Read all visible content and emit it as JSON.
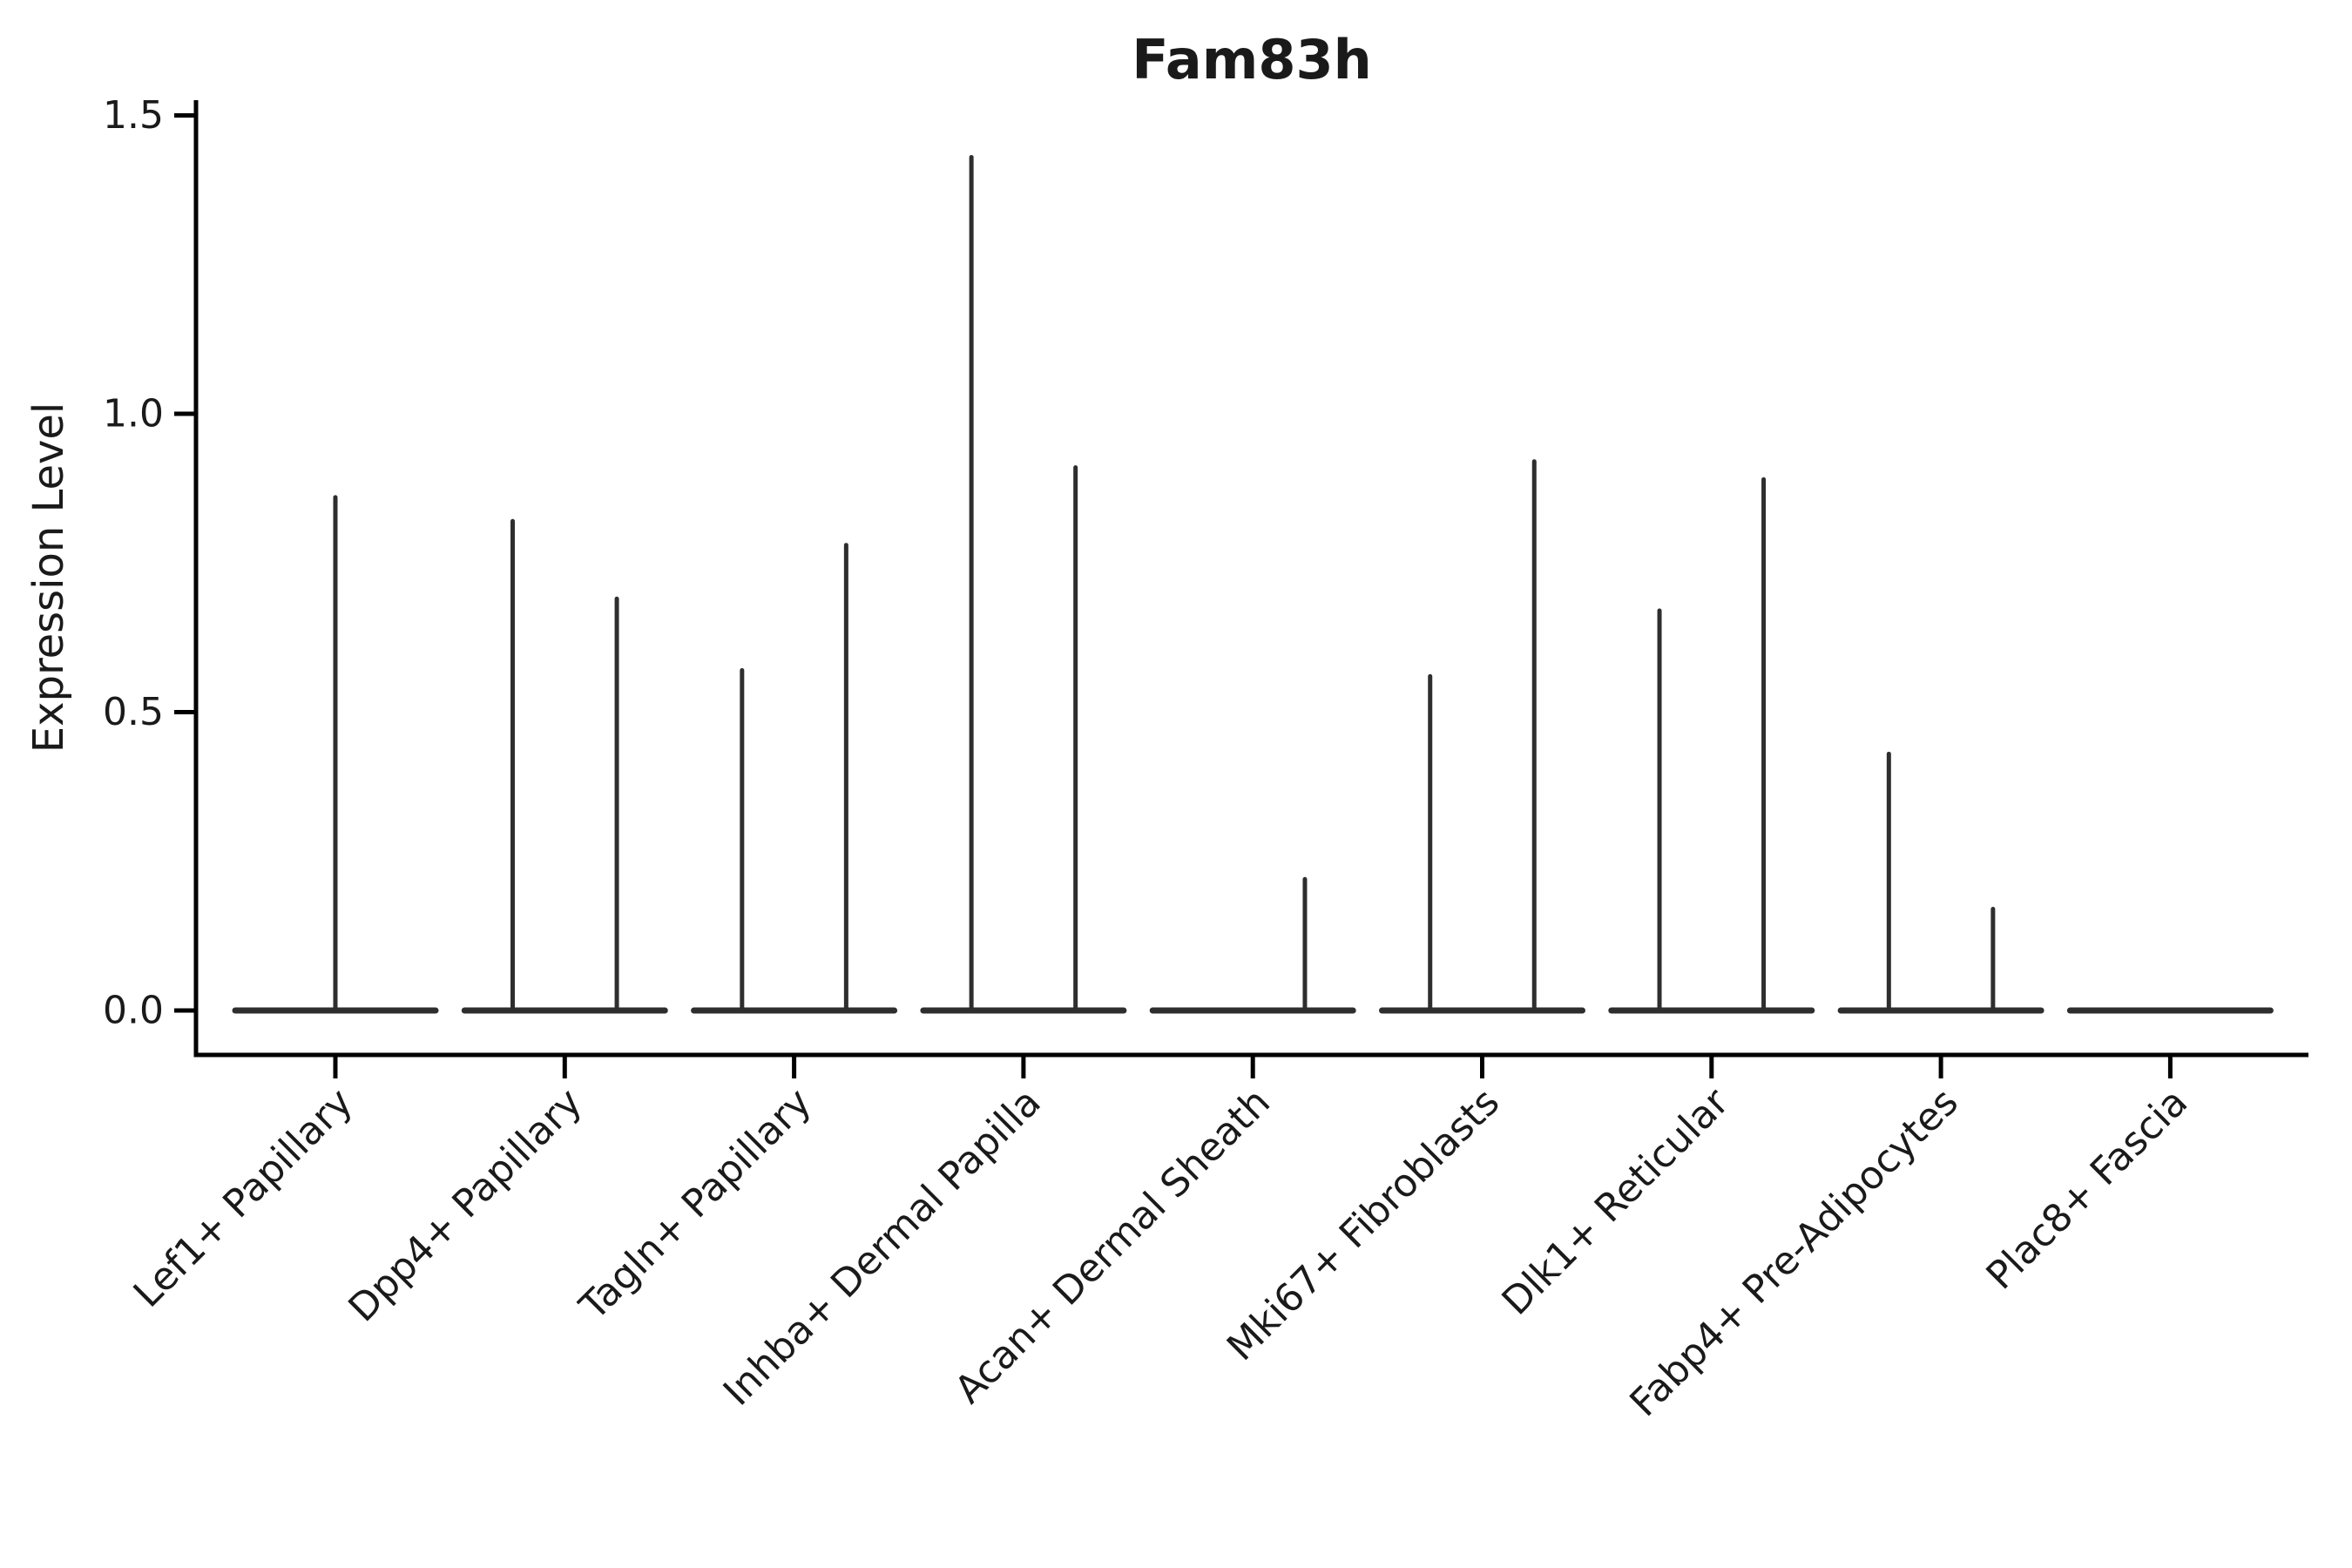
{
  "figure": {
    "title": "Fam83h",
    "ylabel": "Expression Level",
    "background": "#ffffff",
    "ink_color": "#1a1a1a",
    "violin_color": "#2e2e2e",
    "spine_color": "#000000"
  },
  "chart_data": {
    "type": "violin",
    "title": "Fam83h",
    "xlabel": "",
    "ylabel": "Expression Level",
    "ylim": [
      -0.07,
      1.53
    ],
    "yticks": [
      0.0,
      0.5,
      1.0,
      1.5
    ],
    "ytick_labels": [
      "0.0",
      "0.5",
      "1.0",
      "1.5"
    ],
    "grid": false,
    "legend": false,
    "categories": [
      "Lef1+ Papillary",
      "Dpp4+ Papillary",
      "Tagln+ Papillary",
      "Inhba+ Dermal Papilla",
      "Acan+ Dermal Sheath",
      "Mki67+ Fibroblasts",
      "Dlk1+ Reticular",
      "Fabp4+ Pre-Adipocytes",
      "Plac8+ Fascia"
    ],
    "description": "Each category shows a flat violin body at expression 0 with thin vertical density spikes reaching the maximum expression values; offset is the spike position as a fraction of category spacing.",
    "violins": [
      {
        "category": "Lef1+ Papillary",
        "baseline": 0.0,
        "spikes": [
          {
            "offset": 0.0,
            "max": 0.86
          }
        ]
      },
      {
        "category": "Dpp4+ Papillary",
        "baseline": 0.0,
        "spikes": [
          {
            "offset": -0.227,
            "max": 0.82
          },
          {
            "offset": 0.227,
            "max": 0.69
          }
        ]
      },
      {
        "category": "Tagln+ Papillary",
        "baseline": 0.0,
        "spikes": [
          {
            "offset": -0.227,
            "max": 0.57
          },
          {
            "offset": 0.227,
            "max": 0.78
          }
        ]
      },
      {
        "category": "Inhba+ Dermal Papilla",
        "baseline": 0.0,
        "spikes": [
          {
            "offset": -0.227,
            "max": 1.43
          },
          {
            "offset": 0.227,
            "max": 0.91
          }
        ]
      },
      {
        "category": "Acan+ Dermal Sheath",
        "baseline": 0.0,
        "spikes": [
          {
            "offset": 0.227,
            "max": 0.22
          }
        ]
      },
      {
        "category": "Mki67+ Fibroblasts",
        "baseline": 0.0,
        "spikes": [
          {
            "offset": -0.227,
            "max": 0.56
          },
          {
            "offset": 0.227,
            "max": 0.92
          }
        ]
      },
      {
        "category": "Dlk1+ Reticular",
        "baseline": 0.0,
        "spikes": [
          {
            "offset": -0.227,
            "max": 0.67
          },
          {
            "offset": 0.227,
            "max": 0.89
          }
        ]
      },
      {
        "category": "Fabp4+ Pre-Adipocytes",
        "baseline": 0.0,
        "spikes": [
          {
            "offset": -0.227,
            "max": 0.43
          },
          {
            "offset": 0.227,
            "max": 0.17
          }
        ]
      },
      {
        "category": "Plac8+ Fascia",
        "baseline": 0.0,
        "spikes": []
      }
    ]
  }
}
